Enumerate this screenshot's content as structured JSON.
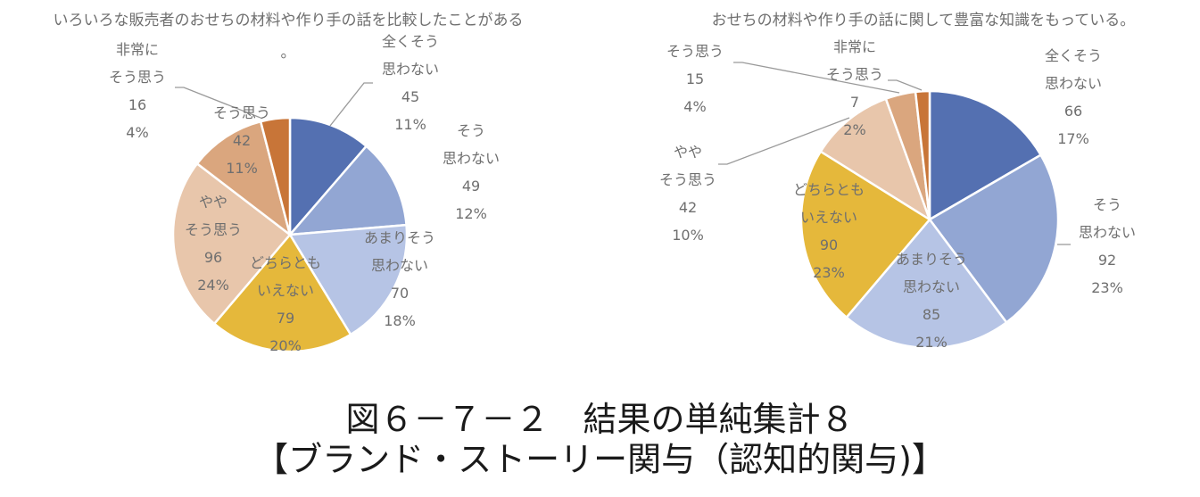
{
  "chart_data": [
    {
      "type": "pie",
      "title": "いろいろな販売者のおせちの材料や作り手の話を比較したことがある。",
      "categories": [
        "全くそう思わない",
        "そう思わない",
        "あまりそう思わない",
        "どちらともいえない",
        "ややそう思う",
        "そう思う",
        "非常にそう思う"
      ],
      "values": [
        45,
        49,
        70,
        79,
        96,
        42,
        16
      ],
      "percent_labels": [
        "11%",
        "12%",
        "18%",
        "20%",
        "24%",
        "11%",
        "4%"
      ],
      "start": "12 o'clock",
      "direction": "clockwise"
    },
    {
      "type": "pie",
      "title": "おせちの材料や作り手の話に関して豊富な知識をもっている。",
      "categories": [
        "全くそう思わない",
        "そう思わない",
        "あまりそう思わない",
        "どちらともいえない",
        "ややそう思う",
        "そう思う",
        "非常にそう思う"
      ],
      "values": [
        66,
        92,
        85,
        90,
        42,
        15,
        7
      ],
      "percent_labels": [
        "17%",
        "23%",
        "21%",
        "23%",
        "10%",
        "4%",
        "2%"
      ],
      "start": "12 o'clock",
      "direction": "clockwise"
    }
  ],
  "slice_colors": [
    "#5470b1",
    "#92a6d3",
    "#b6c4e5",
    "#e5b83b",
    "#e8c6ab",
    "#daa67e",
    "#c87538"
  ],
  "caption": {
    "line1": "図６－７－２　結果の単純集計８",
    "line2": "【ブランド・ストーリー関与（認知的関与)】"
  }
}
